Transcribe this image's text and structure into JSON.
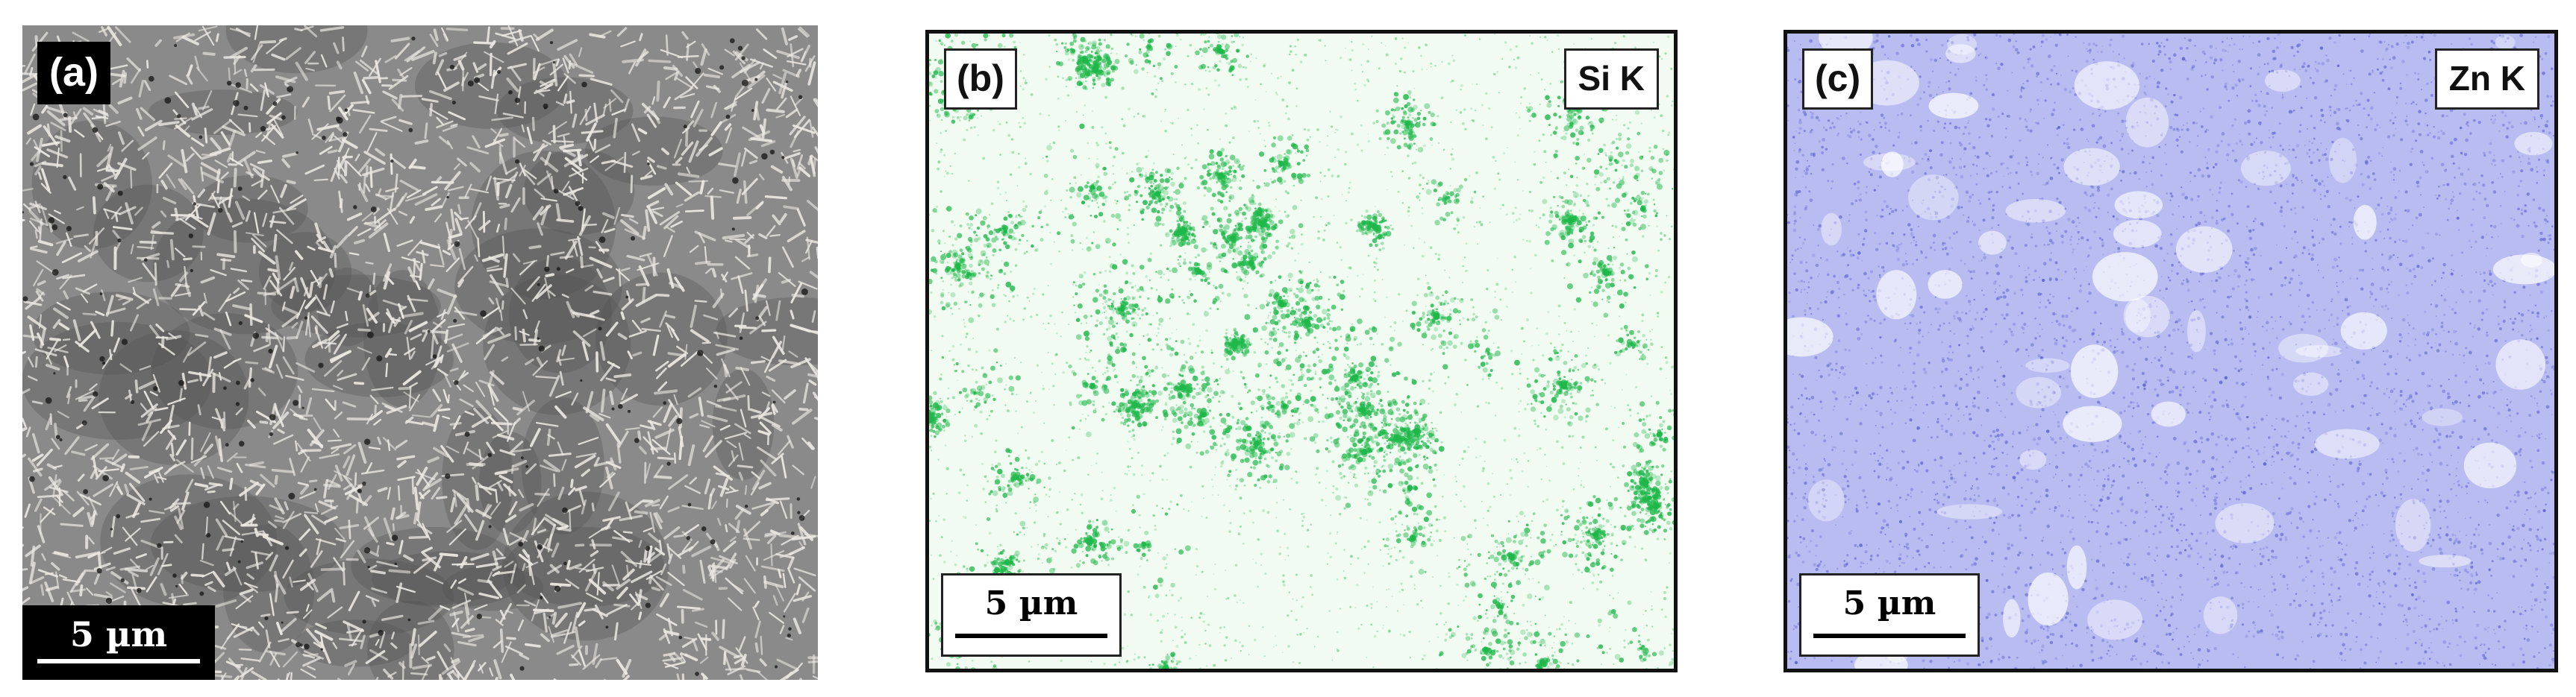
{
  "figure": {
    "panels": [
      {
        "label": "(a)",
        "scale_bar": "5 µm",
        "colors": {
          "base": "#8a8a8a",
          "flake": "#ece9e4",
          "shadow": "#545454"
        }
      },
      {
        "label": "(b)",
        "element": "Si K",
        "scale_bar": "5 µm",
        "colors": {
          "base": "#f2fbf2",
          "signal": "#1fb84a"
        }
      },
      {
        "label": "(c)",
        "element": "Zn K",
        "scale_bar": "5 µm",
        "colors": {
          "base": "#b8bcf0",
          "signal": "#5a5fcf",
          "void": "#ffffff"
        }
      }
    ]
  }
}
